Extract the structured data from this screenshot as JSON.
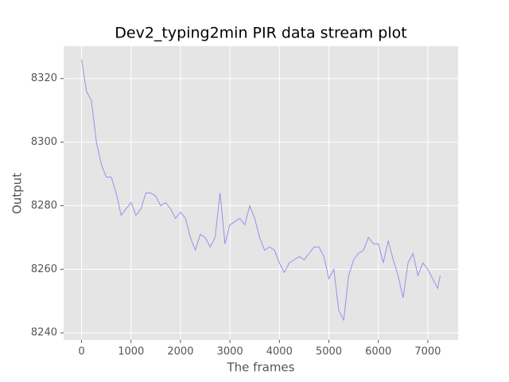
{
  "chart_data": {
    "type": "line",
    "title": "Dev2_typing2min PIR data stream plot",
    "xlabel": "The frames",
    "ylabel": "Output",
    "x": [
      0,
      100,
      200,
      300,
      400,
      500,
      600,
      700,
      800,
      900,
      1000,
      1100,
      1200,
      1300,
      1400,
      1500,
      1600,
      1700,
      1800,
      1900,
      2000,
      2100,
      2200,
      2300,
      2400,
      2500,
      2600,
      2700,
      2800,
      2900,
      3000,
      3100,
      3200,
      3300,
      3400,
      3500,
      3600,
      3700,
      3800,
      3900,
      4000,
      4100,
      4200,
      4300,
      4400,
      4500,
      4600,
      4700,
      4800,
      4900,
      5000,
      5100,
      5200,
      5300,
      5400,
      5500,
      5600,
      5700,
      5800,
      5900,
      6000,
      6100,
      6200,
      6300,
      6400,
      6500,
      6600,
      6700,
      6800,
      6900,
      7000,
      7100,
      7200,
      7250
    ],
    "series": [
      {
        "color": "#9b8fe8",
        "values": [
          8326,
          8316,
          8313,
          8300,
          8293,
          8289,
          8289,
          8284,
          8277,
          8279,
          8281,
          8277,
          8279,
          8284,
          8284,
          8283,
          8280,
          8281,
          8279,
          8276,
          8278,
          8276,
          8270,
          8266,
          8271,
          8270,
          8267,
          8270,
          8284,
          8268,
          8274,
          8275,
          8276,
          8274,
          8280,
          8276,
          8270,
          8266,
          8267,
          8266,
          8262,
          8259,
          8262,
          8263,
          8264,
          8263,
          8265,
          8267,
          8267,
          8264,
          8257,
          8260,
          8247,
          8244,
          8258,
          8263,
          8265,
          8266,
          8270,
          8268,
          8268,
          8262,
          8269,
          8263,
          8258,
          8251,
          8262,
          8265,
          8258,
          8262,
          8260,
          8257,
          8254,
          8258
        ]
      }
    ],
    "xlim": [
      -362.5,
      7612.5
    ],
    "ylim": [
      8237.8,
      8330.2
    ],
    "xticks": [
      0,
      1000,
      2000,
      3000,
      4000,
      5000,
      6000,
      7000
    ],
    "yticks": [
      8240,
      8260,
      8280,
      8300,
      8320
    ],
    "grid": true,
    "background": "#e5e5e5"
  }
}
